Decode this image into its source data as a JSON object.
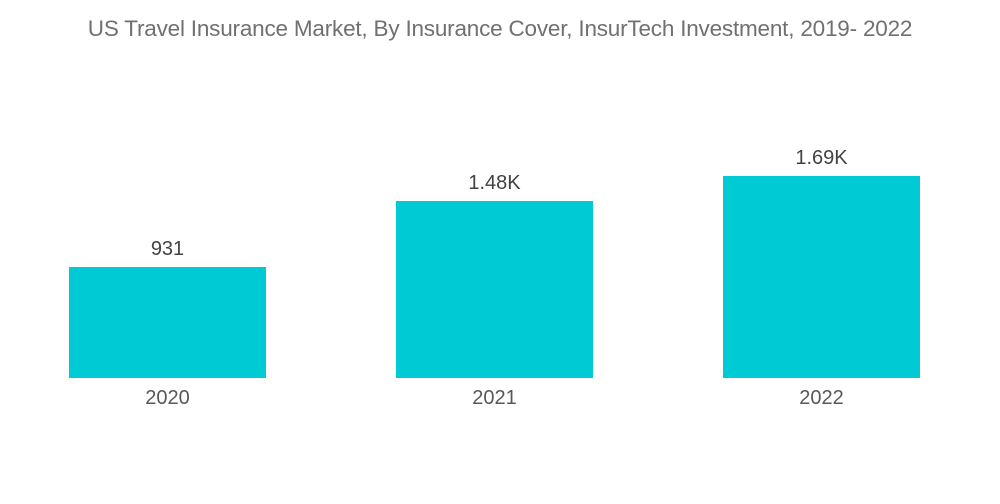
{
  "title": "US Travel Insurance Market, By Insurance Cover, InsurTech Investment, 2019- 2022",
  "colors": {
    "background": "#FFFFFF",
    "bar": "#00CBD4",
    "title_text": "#6E7071",
    "value_label_text": "#414244",
    "category_label_text": "#57585A"
  },
  "chart_data": {
    "type": "bar",
    "title": "US Travel Insurance Market, By Insurance Cover, InsurTech Investment, 2019- 2022",
    "categories": [
      "2020",
      "2021",
      "2022"
    ],
    "values": [
      931,
      1480,
      1690
    ],
    "value_labels": [
      "931",
      "1.48K",
      "1.69K"
    ],
    "series_name": "InsurTech Investment",
    "xlabel": "",
    "ylabel": "",
    "ylim": [
      0,
      1690
    ],
    "grid": false,
    "axes_visible": false,
    "legend_position": "none",
    "bar_color": "#00CBD4"
  }
}
